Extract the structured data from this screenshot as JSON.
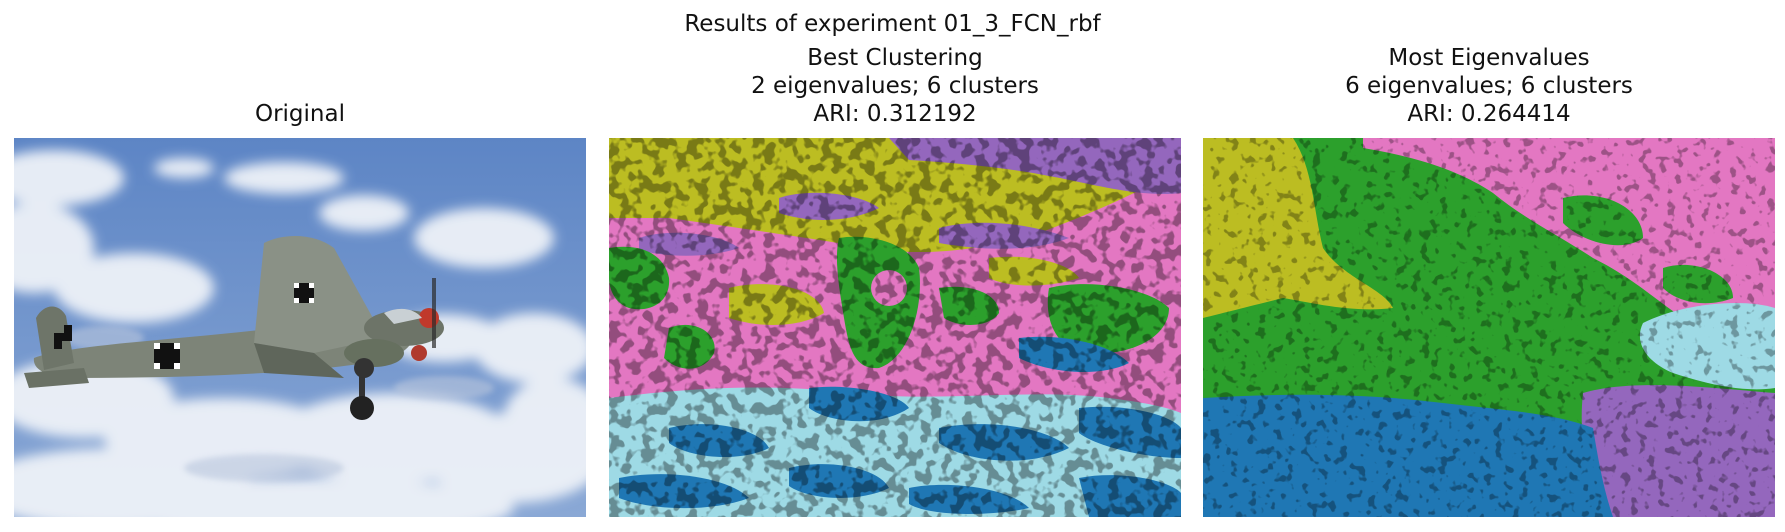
{
  "figure": {
    "suptitle": "Results of experiment 01_3_FCN_rbf"
  },
  "panels": [
    {
      "id": "original",
      "title_lines": [
        "Original"
      ],
      "description": "photo"
    },
    {
      "id": "best",
      "title_lines": [
        "Best Clustering",
        "2 eigenvalues; 6 clusters",
        "ARI: 0.312192"
      ]
    },
    {
      "id": "most",
      "title_lines": [
        "Most Eigenvalues",
        "6 eigenvalues; 6 clusters",
        "ARI: 0.264414"
      ]
    }
  ],
  "colors": {
    "sky_top": "#5f86c4",
    "sky_bottom": "#86a6d6",
    "cloud": "#eef2f7",
    "plane": "#7a8174",
    "olive": "#bcbd22",
    "purple": "#9467bd",
    "pink": "#e377c2",
    "green": "#2ca02c",
    "blue": "#1f77b4",
    "cyan": "#9edae5"
  }
}
